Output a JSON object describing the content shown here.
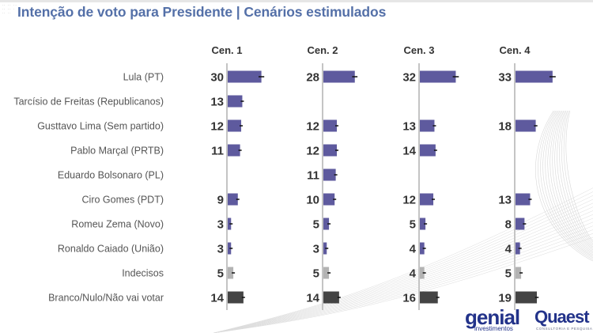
{
  "header": {
    "title": "Intenção de voto para Presidente | Cenários estimulados"
  },
  "logos": {
    "genial": "genial",
    "genial_sub": "investimentos",
    "quaest": "Quaest",
    "quaest_sub": "CONSULTORIA E PESQUISA"
  },
  "colors": {
    "title": "#5470a8",
    "candidate_bar": "#5e5a9e",
    "undecided_bar": "#b3b3b3",
    "blank_null_bar": "#444444",
    "axis": "#c4c4c4",
    "brand": "#23338a"
  },
  "chart_data": {
    "type": "bar",
    "orientation": "horizontal",
    "title": "Intenção de voto para Presidente | Cenários estimulados",
    "xlabel": "",
    "ylabel": "",
    "grid": false,
    "error_bars": true,
    "categories": [
      "Lula (PT)",
      "Tarcísio de Freitas (Republicanos)",
      "Gusttavo Lima (Sem partido)",
      "Pablo Marçal (PRTB)",
      "Eduardo Bolsonaro (PL)",
      "Ciro Gomes (PDT)",
      "Romeu Zema (Novo)",
      "Ronaldo Caiado (União)",
      "Indecisos",
      "Branco/Nulo/Não vai votar"
    ],
    "category_types": [
      "candidate",
      "candidate",
      "candidate",
      "candidate",
      "candidate",
      "candidate",
      "candidate",
      "candidate",
      "undecided",
      "blank_null"
    ],
    "series": [
      {
        "name": "Cen. 1",
        "values": [
          30,
          13,
          12,
          11,
          null,
          9,
          3,
          3,
          5,
          14
        ]
      },
      {
        "name": "Cen. 2",
        "values": [
          28,
          null,
          12,
          12,
          11,
          10,
          5,
          3,
          5,
          14
        ]
      },
      {
        "name": "Cen. 3",
        "values": [
          32,
          null,
          13,
          14,
          null,
          12,
          5,
          4,
          4,
          16
        ]
      },
      {
        "name": "Cen. 4",
        "values": [
          33,
          null,
          18,
          null,
          null,
          13,
          8,
          4,
          5,
          19
        ]
      }
    ],
    "xlim": [
      0,
      100
    ]
  }
}
